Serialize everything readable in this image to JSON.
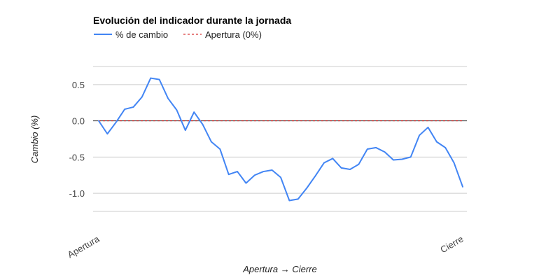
{
  "chart_data": {
    "type": "line",
    "title": "Evolución del indicador durante la jornada",
    "xlabel": "Apertura → Cierre",
    "ylabel": "Cambio (%)",
    "x_tick_labels": [
      "Apertura",
      "Cierre"
    ],
    "y_ticks": [
      0.5,
      0.0,
      -0.5,
      -1.0
    ],
    "y_tick_labels": [
      "0.5",
      "0.0",
      "-0.5",
      "-1.0"
    ],
    "ylim": [
      -1.25,
      0.75
    ],
    "grid": true,
    "legend_position": "top-left",
    "series": [
      {
        "name": "% de cambio",
        "color": "#4285f4",
        "style": "solid",
        "values": [
          0.0,
          -0.18,
          -0.02,
          0.16,
          0.19,
          0.33,
          0.59,
          0.57,
          0.31,
          0.15,
          -0.13,
          0.12,
          -0.05,
          -0.29,
          -0.39,
          -0.74,
          -0.7,
          -0.86,
          -0.75,
          -0.7,
          -0.68,
          -0.78,
          -1.1,
          -1.08,
          -0.93,
          -0.76,
          -0.58,
          -0.52,
          -0.65,
          -0.67,
          -0.6,
          -0.39,
          -0.37,
          -0.43,
          -0.54,
          -0.53,
          -0.5,
          -0.2,
          -0.09,
          -0.29,
          -0.37,
          -0.58,
          -0.91
        ]
      },
      {
        "name": "Apertura (0%)",
        "color": "#cc0000",
        "style": "dashed",
        "values": [
          0.0,
          0.0
        ]
      }
    ]
  }
}
